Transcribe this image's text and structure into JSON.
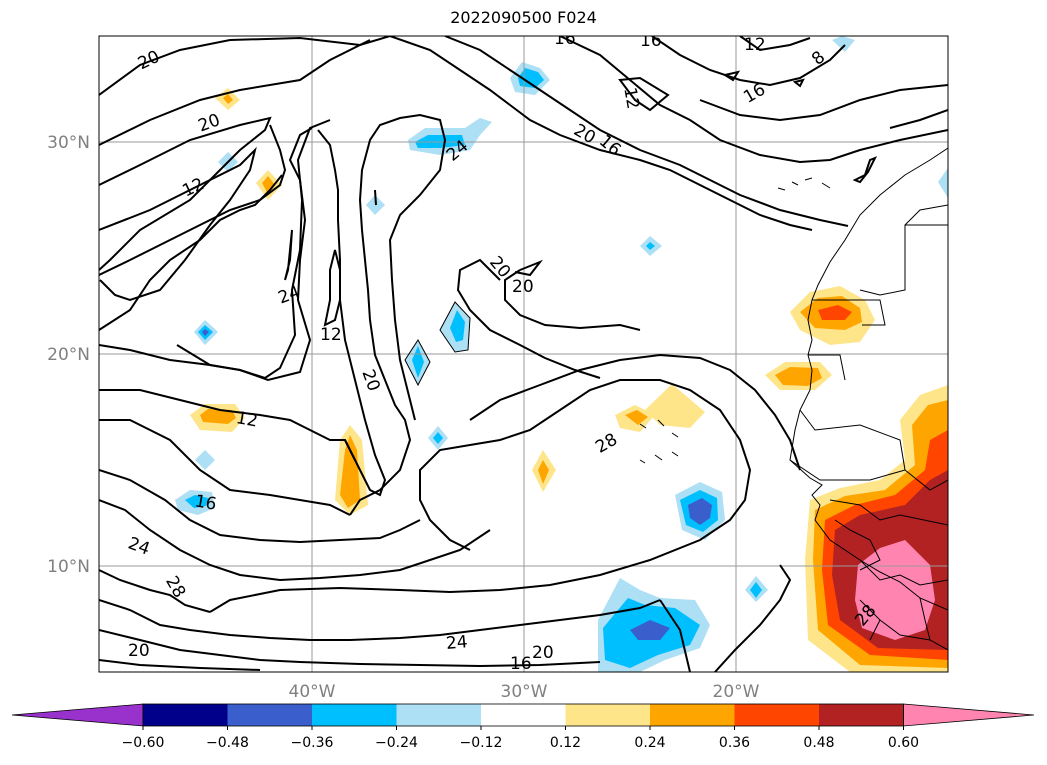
{
  "title": "2022090500 F024",
  "map": {
    "lon_range": [
      -50,
      -10
    ],
    "lat_range": [
      5,
      35
    ],
    "lon_ticks": [
      {
        "value": -40,
        "label": "40°W"
      },
      {
        "value": -30,
        "label": "30°W"
      },
      {
        "value": -20,
        "label": "20°W"
      }
    ],
    "lat_ticks": [
      {
        "value": 30,
        "label": "30°N"
      },
      {
        "value": 20,
        "label": "20°N"
      },
      {
        "value": 10,
        "label": "10°N"
      }
    ],
    "grid": true,
    "contour_labels": [
      "20",
      "20",
      "12",
      "24",
      "12",
      "20",
      "24",
      "12",
      "16",
      "24",
      "28",
      "20",
      "24",
      "20",
      "16",
      "28",
      "20",
      "16",
      "12",
      "8",
      "16",
      "16",
      "12",
      "16",
      "20",
      "28"
    ]
  },
  "colorbar": {
    "ticks": [
      "−0.60",
      "−0.48",
      "−0.36",
      "−0.24",
      "−0.12",
      "0.12",
      "0.24",
      "0.36",
      "0.48",
      "0.60"
    ],
    "colors": [
      "#9932CC",
      "#00008B",
      "#3A5FCD",
      "#00BFFF",
      "#ADDFF5",
      "#FFFFFF",
      "#FFE58A",
      "#FFA500",
      "#FF4500",
      "#B22222",
      "#FF85B0"
    ]
  }
}
